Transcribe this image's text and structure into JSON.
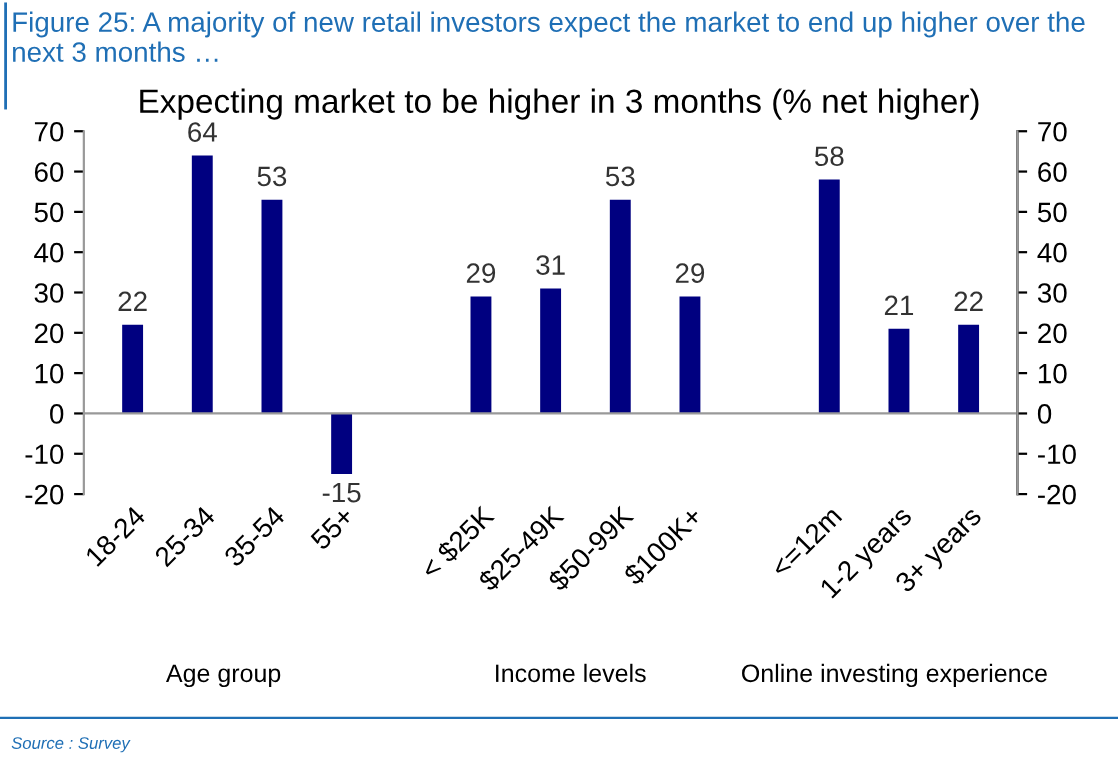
{
  "chart_data": {
    "type": "bar",
    "title": "Figure 25: A majority of new retail investors expect the market to end up higher over the next 3 months …",
    "subtitle": "Expecting market to be higher in 3 months (% net higher)",
    "categories": [
      "18-24",
      "25-34",
      "35-54",
      "55+",
      null,
      "< $25K",
      "$25-49K",
      "$50-99K",
      "$100K+",
      null,
      "<=12m",
      "1-2 years",
      "3+ years"
    ],
    "values": [
      22,
      64,
      53,
      -15,
      null,
      29,
      31,
      53,
      29,
      null,
      58,
      21,
      22
    ],
    "color": "#000080",
    "data_labels": true,
    "ylim": [
      -20,
      70
    ],
    "yticks": [
      -20,
      -10,
      0,
      10,
      20,
      30,
      40,
      50,
      60,
      70
    ],
    "y2lim": [
      -20,
      70
    ],
    "y2ticks": [
      -20,
      -10,
      0,
      10,
      20,
      30,
      40,
      50,
      60,
      70
    ],
    "annotations": [
      "Age group",
      "Income levels",
      "Online investing experience",
      "Source : Survey"
    ]
  }
}
